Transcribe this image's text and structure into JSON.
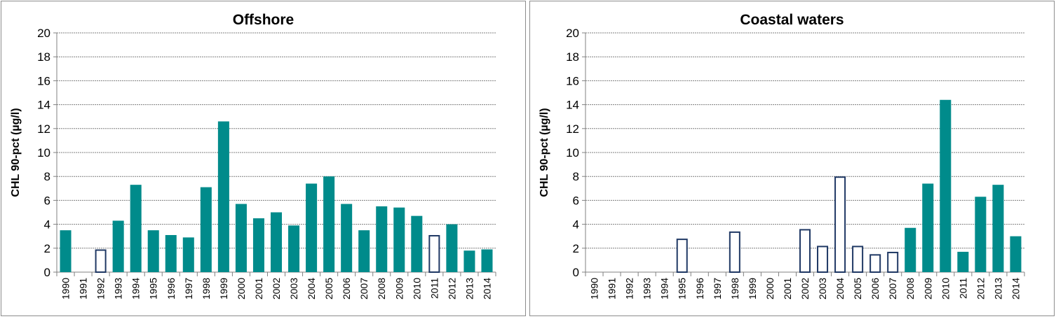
{
  "colors": {
    "filled": "#008B8B",
    "outline": "#1F3864",
    "grid": "#7f7f7f",
    "axis": "#808080"
  },
  "chart_data": [
    {
      "type": "bar",
      "title": "Offshore",
      "ylabel": "CHL 90-pct (µg/l)",
      "xlabel": "",
      "ylim": [
        0,
        20
      ],
      "yticks": [
        "0",
        "2",
        "4",
        "6",
        "8",
        "10",
        "12",
        "14",
        "16",
        "18",
        "20"
      ],
      "grid": true,
      "categories": [
        "1990",
        "1991",
        "1992",
        "1993",
        "1994",
        "1995",
        "1996",
        "1997",
        "1998",
        "1999",
        "2000",
        "2001",
        "2002",
        "2003",
        "2004",
        "2005",
        "2006",
        "2007",
        "2008",
        "2009",
        "2010",
        "2011",
        "2012",
        "2013",
        "2014"
      ],
      "values": [
        3.5,
        null,
        1.9,
        4.3,
        7.3,
        3.5,
        3.1,
        2.9,
        7.1,
        12.6,
        5.7,
        4.5,
        5.0,
        3.9,
        7.4,
        8.0,
        5.7,
        3.5,
        5.5,
        5.4,
        4.7,
        3.1,
        4.0,
        1.8,
        1.9
      ],
      "style": [
        "filled",
        "filled",
        "outline",
        "filled",
        "filled",
        "filled",
        "filled",
        "filled",
        "filled",
        "filled",
        "filled",
        "filled",
        "filled",
        "filled",
        "filled",
        "filled",
        "filled",
        "filled",
        "filled",
        "filled",
        "filled",
        "outline",
        "filled",
        "filled",
        "filled"
      ]
    },
    {
      "type": "bar",
      "title": "Coastal waters",
      "ylabel": "CHL 90-pct (µg/l)",
      "xlabel": "",
      "ylim": [
        0,
        20
      ],
      "yticks": [
        "0",
        "2",
        "4",
        "6",
        "8",
        "10",
        "12",
        "14",
        "16",
        "18",
        "20"
      ],
      "grid": true,
      "categories": [
        "1990",
        "1991",
        "1992",
        "1993",
        "1994",
        "1995",
        "1996",
        "1997",
        "1998",
        "1999",
        "2000",
        "2001",
        "2002",
        "2003",
        "2004",
        "2005",
        "2006",
        "2007",
        "2008",
        "2009",
        "2010",
        "2011",
        "2012",
        "2013",
        "2014"
      ],
      "values": [
        null,
        null,
        null,
        null,
        null,
        2.8,
        null,
        null,
        3.4,
        null,
        null,
        null,
        3.6,
        2.2,
        8.0,
        2.2,
        1.5,
        1.7,
        3.7,
        7.4,
        14.4,
        1.7,
        6.3,
        7.3,
        3.0
      ],
      "style": [
        "filled",
        "filled",
        "filled",
        "filled",
        "filled",
        "outline",
        "filled",
        "filled",
        "outline",
        "filled",
        "filled",
        "filled",
        "outline",
        "outline",
        "outline",
        "outline",
        "outline",
        "outline",
        "filled",
        "filled",
        "filled",
        "filled",
        "filled",
        "filled",
        "filled"
      ]
    }
  ]
}
